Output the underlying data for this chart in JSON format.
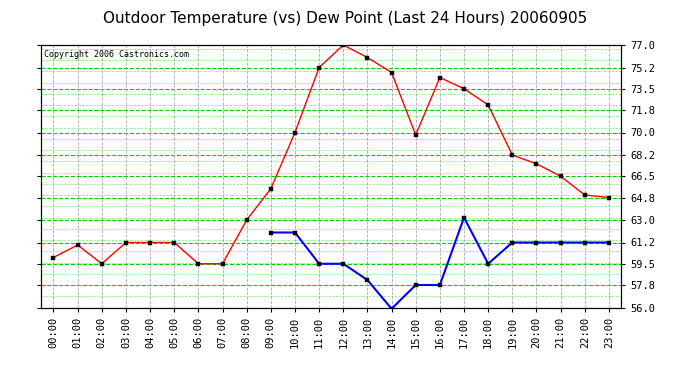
{
  "title": "Outdoor Temperature (vs) Dew Point (Last 24 Hours) 20060905",
  "copyright": "Copyright 2006 Castronics.com",
  "x_labels": [
    "00:00",
    "01:00",
    "02:00",
    "03:00",
    "04:00",
    "05:00",
    "06:00",
    "07:00",
    "08:00",
    "09:00",
    "10:00",
    "11:00",
    "12:00",
    "13:00",
    "14:00",
    "15:00",
    "16:00",
    "17:00",
    "18:00",
    "19:00",
    "20:00",
    "21:00",
    "22:00",
    "23:00"
  ],
  "temp_data": [
    60.0,
    61.0,
    59.5,
    61.2,
    61.2,
    61.2,
    59.5,
    59.5,
    63.0,
    65.5,
    70.0,
    75.2,
    77.0,
    76.0,
    74.8,
    69.8,
    74.4,
    73.5,
    72.2,
    68.2,
    67.5,
    66.5,
    65.0,
    64.8
  ],
  "dew_data": [
    null,
    null,
    null,
    null,
    null,
    null,
    null,
    null,
    null,
    62.0,
    62.0,
    59.5,
    59.5,
    58.2,
    55.9,
    57.8,
    57.8,
    63.2,
    59.5,
    61.2,
    61.2,
    61.2,
    61.2,
    61.2
  ],
  "temp_color": "#FF0000",
  "dew_color": "#0000FF",
  "bg_color": "#FFFFFF",
  "plot_bg_color": "#FFFFFF",
  "grid_green": "#00CC00",
  "grid_gray": "#AAAAAA",
  "ylim": [
    56.0,
    77.0
  ],
  "yticks": [
    56.0,
    57.8,
    59.5,
    61.2,
    63.0,
    64.8,
    66.5,
    68.2,
    70.0,
    71.8,
    73.5,
    75.2,
    77.0
  ],
  "ytick_labels": [
    "56.0",
    "57.8",
    "59.5",
    "61.2",
    "63.0",
    "64.8",
    "66.5",
    "68.2",
    "70.0",
    "71.8",
    "73.5",
    "75.2",
    "77.0"
  ],
  "title_fontsize": 11,
  "tick_fontsize": 7.5,
  "copyright_fontsize": 6,
  "marker_size": 3
}
